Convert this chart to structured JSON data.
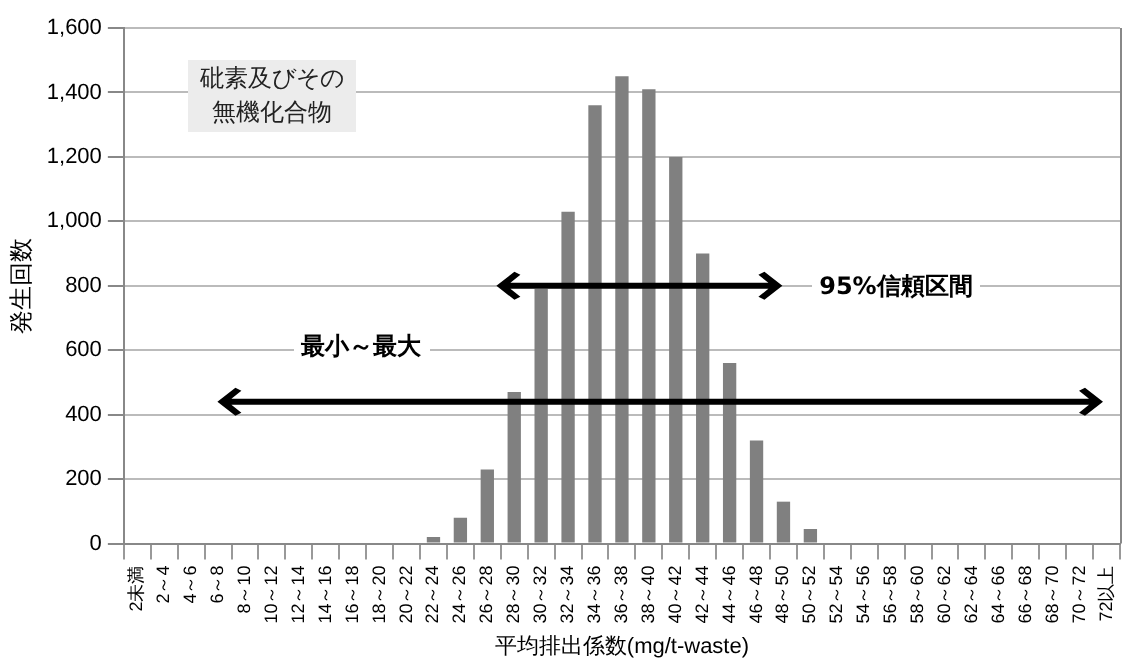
{
  "chart_data": {
    "type": "bar",
    "title": "砒素及びその無機化合物",
    "xlabel": "平均排出係数(mg/t-waste)",
    "ylabel": "発生回数",
    "categories": [
      "2未満",
      "2～4",
      "4～6",
      "6～8",
      "8～10",
      "10～12",
      "12～14",
      "14～16",
      "16～18",
      "18～20",
      "20～22",
      "22～24",
      "24～26",
      "26～28",
      "28～30",
      "30～32",
      "32～34",
      "34～36",
      "36～38",
      "38～40",
      "40～42",
      "42～44",
      "44～46",
      "46～48",
      "48～50",
      "50～52",
      "52～54",
      "54～56",
      "56～58",
      "58～60",
      "60～62",
      "62～64",
      "64～66",
      "66～68",
      "68～70",
      "70～72",
      "72以上"
    ],
    "values": [
      0,
      0,
      0,
      0,
      0,
      0,
      0,
      0,
      0,
      0,
      0,
      20,
      80,
      230,
      470,
      790,
      1030,
      1360,
      1450,
      1410,
      1200,
      900,
      560,
      320,
      130,
      45,
      0,
      0,
      0,
      0,
      0,
      0,
      0,
      0,
      0,
      0,
      0
    ],
    "color": "#808080",
    "ylim": [
      0,
      1600
    ],
    "yticks": [
      {
        "value": 0,
        "label": "0"
      },
      {
        "value": 200,
        "label": "200"
      },
      {
        "value": 400,
        "label": "400"
      },
      {
        "value": 600,
        "label": "600"
      },
      {
        "value": 800,
        "label": "800"
      },
      {
        "value": 1000,
        "label": "1,000"
      },
      {
        "value": 1200,
        "label": "1,200"
      },
      {
        "value": 1400,
        "label": "1,400"
      },
      {
        "value": 1600,
        "label": "1,600"
      }
    ],
    "grid": "y",
    "legend": false,
    "annotations": [
      "95%信頼区間",
      "最小～最大"
    ]
  }
}
